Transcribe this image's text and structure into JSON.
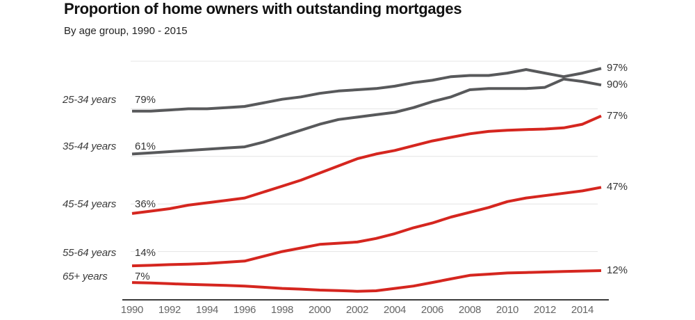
{
  "header": {
    "title": "Proportion of home owners with outstanding mortgages",
    "subtitle": "By age group, 1990 - 2015"
  },
  "colors": {
    "line_gray": "#58595b",
    "line_red": "#d5261f",
    "gridline": "#e4e4e4",
    "axis": "#3b3b3b",
    "tick_text": "#666666",
    "title_text": "#111111",
    "category_text": "#3a3a3a",
    "value_text": "#333333"
  },
  "chart_data": {
    "type": "line",
    "title": "Proportion of home owners with outstanding mortgages",
    "subtitle": "By age group, 1990 - 2015",
    "xlabel": "",
    "ylabel": "",
    "ylim": [
      0,
      100
    ],
    "grid": "horizontal gridlines at 20, 40, 60, 80, 100",
    "legend": "inline: age-group labels with start values at left of lines, end values at right of lines",
    "x": [
      1990,
      1991,
      1992,
      1993,
      1994,
      1995,
      1996,
      1997,
      1998,
      1999,
      2000,
      2001,
      2002,
      2003,
      2004,
      2005,
      2006,
      2007,
      2008,
      2009,
      2010,
      2011,
      2012,
      2013,
      2014,
      2015
    ],
    "x_tick_labels": [
      "1990",
      "1992",
      "1994",
      "1996",
      "1998",
      "2000",
      "2002",
      "2004",
      "2006",
      "2008",
      "2010",
      "2012",
      "2014"
    ],
    "series": [
      {
        "name": "25-34 years",
        "color": "#58595b",
        "start_label": "79%",
        "end_label": "97%",
        "values": [
          79,
          79,
          79.5,
          80,
          80,
          80.5,
          81,
          82.5,
          84,
          85,
          86.5,
          87.5,
          88,
          88.5,
          89.5,
          91,
          92,
          93.5,
          94,
          94,
          95,
          96.5,
          95,
          93.5,
          95,
          97
        ]
      },
      {
        "name": "35-44 years",
        "color": "#58595b",
        "start_label": "61%",
        "end_label": "90%",
        "values": [
          61,
          61.5,
          62,
          62.5,
          63,
          63.5,
          64,
          66,
          68.5,
          71,
          73.5,
          75.5,
          76.5,
          77.5,
          78.5,
          80.5,
          83,
          85,
          88,
          88.5,
          88.5,
          88.5,
          89,
          92.5,
          91.5,
          90
        ]
      },
      {
        "name": "45-54 years",
        "color": "#d5261f",
        "start_label": "36%",
        "end_label": "77%",
        "values": [
          36,
          37,
          38,
          39.5,
          40.5,
          41.5,
          42.5,
          45,
          47.5,
          50,
          53,
          56,
          59,
          61,
          62.5,
          64.5,
          66.5,
          68,
          69.5,
          70.5,
          71,
          71.3,
          71.5,
          72,
          73.5,
          77
        ]
      },
      {
        "name": "55-64 years",
        "color": "#d5261f",
        "start_label": "14%",
        "end_label": "47%",
        "values": [
          14,
          14.2,
          14.5,
          14.7,
          15,
          15.5,
          16,
          18,
          20,
          21.5,
          23,
          23.5,
          24,
          25.5,
          27.5,
          30,
          32,
          34.5,
          36.5,
          38.5,
          41,
          42.5,
          43.5,
          44.5,
          45.5,
          47
        ]
      },
      {
        "name": "65+ years",
        "color": "#d5261f",
        "start_label": "7%",
        "end_label": "12%",
        "values": [
          7,
          6.8,
          6.5,
          6.2,
          6,
          5.8,
          5.5,
          5,
          4.5,
          4.2,
          3.8,
          3.6,
          3.3,
          3.5,
          4.5,
          5.5,
          7,
          8.5,
          10,
          10.5,
          11,
          11.2,
          11.4,
          11.6,
          11.8,
          12
        ]
      }
    ]
  }
}
